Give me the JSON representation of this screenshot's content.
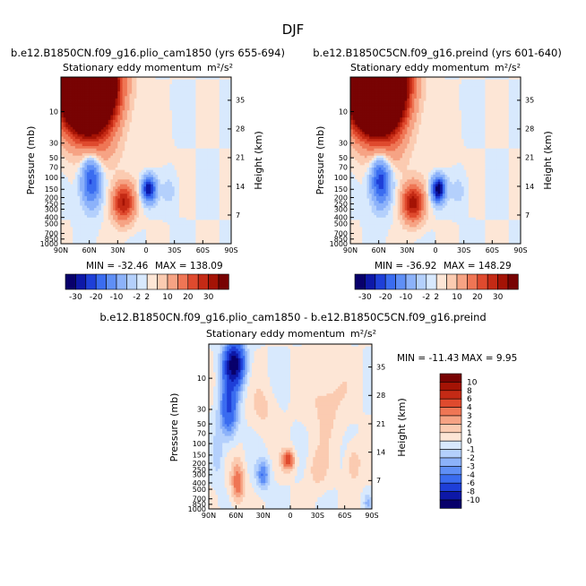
{
  "figure": {
    "title": "DJF"
  },
  "chart_data": [
    {
      "type": "heatmap",
      "title": "b.e12.B1850CN.f09_g16.plio_cam1850 (yrs 655-694)",
      "subtitle": "Stationary eddy momentum",
      "units": "m²/s²",
      "xlabel": "",
      "ylabel": "Pressure (mb)",
      "y2label": "Height (km)",
      "x_tick_labels": [
        "90N",
        "60N",
        "30N",
        "0",
        "30S",
        "60S",
        "90S"
      ],
      "y_tick_labels": [
        "10",
        "30",
        "50",
        "70",
        "100",
        "150",
        "200",
        "250",
        "300",
        "400",
        "500",
        "700",
        "850",
        "1000"
      ],
      "y_tick_values": [
        10,
        30,
        50,
        70,
        100,
        150,
        200,
        250,
        300,
        400,
        500,
        700,
        850,
        1000
      ],
      "y2_tick_labels": [
        "35",
        "28",
        "21",
        "14",
        "7"
      ],
      "y2_tick_values": [
        35,
        28,
        21,
        14,
        7
      ],
      "xlim": [
        90,
        -90
      ],
      "ylim": [
        1000,
        3
      ],
      "min_label": "MIN = -32.46",
      "max_label": "MAX = 138.09",
      "min": -32.46,
      "max": 138.09,
      "features": [
        {
          "lat": 62,
          "p": 4,
          "amp": 140,
          "sx": 18,
          "sy": 1.0
        },
        {
          "lat": 24,
          "p": 240,
          "amp": 26,
          "sx": 8,
          "sy": 0.45
        },
        {
          "lat": -3,
          "p": 150,
          "amp": -30,
          "sx": 5,
          "sy": 0.3
        },
        {
          "lat": 58,
          "p": 110,
          "amp": -22,
          "sx": 7,
          "sy": 0.6
        },
        {
          "lat": -25,
          "p": 160,
          "amp": -3,
          "sx": 6,
          "sy": 0.4
        },
        {
          "lat": 45,
          "p": 40,
          "amp": 4,
          "sx": 12,
          "sy": 0.6
        },
        {
          "lat": -5,
          "p": 40,
          "amp": 2,
          "sx": 10,
          "sy": 0.5
        }
      ]
    },
    {
      "type": "heatmap",
      "title": "b.e12.B1850C5CN.f09_g16.preind (yrs 601-640)",
      "subtitle": "Stationary eddy momentum",
      "units": "m²/s²",
      "xlabel": "",
      "ylabel": "Pressure (mb)",
      "y2label": "Height (km)",
      "x_tick_labels": [
        "90N",
        "60N",
        "30N",
        "0",
        "30S",
        "60S",
        "90S"
      ],
      "y_tick_labels": [
        "10",
        "30",
        "50",
        "70",
        "100",
        "150",
        "200",
        "250",
        "300",
        "400",
        "500",
        "700",
        "850",
        "1000"
      ],
      "y_tick_values": [
        10,
        30,
        50,
        70,
        100,
        150,
        200,
        250,
        300,
        400,
        500,
        700,
        850,
        1000
      ],
      "y2_tick_labels": [
        "35",
        "28",
        "21",
        "14",
        "7"
      ],
      "y2_tick_values": [
        35,
        28,
        21,
        14,
        7
      ],
      "xlim": [
        90,
        -90
      ],
      "ylim": [
        1000,
        3
      ],
      "min_label": "MIN = -36.92",
      "max_label": "MAX = 148.29",
      "min": -36.92,
      "max": 148.29,
      "features": [
        {
          "lat": 62,
          "p": 4,
          "amp": 150,
          "sx": 18,
          "sy": 1.0
        },
        {
          "lat": 24,
          "p": 240,
          "amp": 28,
          "sx": 8,
          "sy": 0.45
        },
        {
          "lat": -3,
          "p": 150,
          "amp": -34,
          "sx": 5,
          "sy": 0.3
        },
        {
          "lat": 58,
          "p": 110,
          "amp": -24,
          "sx": 7,
          "sy": 0.6
        },
        {
          "lat": -25,
          "p": 160,
          "amp": -3,
          "sx": 6,
          "sy": 0.4
        },
        {
          "lat": 45,
          "p": 40,
          "amp": 4,
          "sx": 12,
          "sy": 0.6
        },
        {
          "lat": -5,
          "p": 40,
          "amp": 2,
          "sx": 10,
          "sy": 0.5
        }
      ]
    },
    {
      "type": "heatmap",
      "title": "b.e12.B1850CN.f09_g16.plio_cam1850 - b.e12.B1850C5CN.f09_g16.preind",
      "subtitle": "Stationary eddy momentum",
      "units": "m²/s²",
      "xlabel": "",
      "ylabel": "Pressure (mb)",
      "y2label": "Height (km)",
      "x_tick_labels": [
        "90N",
        "60N",
        "30N",
        "0",
        "30S",
        "60S",
        "90S"
      ],
      "y_tick_labels": [
        "10",
        "30",
        "50",
        "70",
        "100",
        "150",
        "200",
        "250",
        "300",
        "400",
        "500",
        "700",
        "850",
        "1000"
      ],
      "y_tick_values": [
        10,
        30,
        50,
        70,
        100,
        150,
        200,
        250,
        300,
        400,
        500,
        700,
        850,
        1000
      ],
      "y2_tick_labels": [
        "35",
        "28",
        "21",
        "14",
        "7"
      ],
      "y2_tick_values": [
        35,
        28,
        21,
        14,
        7
      ],
      "xlim": [
        90,
        -90
      ],
      "ylim": [
        1000,
        3
      ],
      "min_label": "MIN = -11.43",
      "max_label": "MAX =    9.95",
      "min": -11.43,
      "max": 9.95,
      "features": [
        {
          "lat": 62,
          "p": 6,
          "amp": -11,
          "sx": 8,
          "sy": 0.55
        },
        {
          "lat": 68,
          "p": 30,
          "amp": -6,
          "sx": 7,
          "sy": 0.7
        },
        {
          "lat": 58,
          "p": 400,
          "amp": 4,
          "sx": 5,
          "sy": 0.5
        },
        {
          "lat": 30,
          "p": 300,
          "amp": -4,
          "sx": 5,
          "sy": 0.35
        },
        {
          "lat": 2,
          "p": 180,
          "amp": 5,
          "sx": 5,
          "sy": 0.25
        },
        {
          "lat": -30,
          "p": 250,
          "amp": 1.5,
          "sx": 8,
          "sy": 0.5
        },
        {
          "lat": -40,
          "p": 20,
          "amp": 1.5,
          "sx": 15,
          "sy": 1.0
        },
        {
          "lat": -70,
          "p": 200,
          "amp": 2,
          "sx": 6,
          "sy": 0.5
        },
        {
          "lat": -85,
          "p": 800,
          "amp": -2,
          "sx": 3,
          "sy": 0.2
        },
        {
          "lat": 30,
          "p": 30,
          "amp": 1.2,
          "sx": 10,
          "sy": 0.6
        },
        {
          "lat": 80,
          "p": 150,
          "amp": -1.5,
          "sx": 4,
          "sy": 0.6
        }
      ]
    }
  ],
  "colorbar_main": {
    "labels": [
      "-30",
      "-20",
      "-10",
      "-2",
      "2",
      "10",
      "20",
      "30"
    ],
    "levels": [
      -30,
      -25,
      -20,
      -15,
      -10,
      -5,
      -2,
      0,
      2,
      5,
      10,
      15,
      20,
      25,
      30
    ],
    "colors": [
      "#08006b",
      "#0d18a8",
      "#1e3fd8",
      "#3a6cf0",
      "#5f8ff6",
      "#8cb2fa",
      "#b4d0fc",
      "#d8e9fd",
      "#fde6d6",
      "#fbcbb1",
      "#f6a384",
      "#ef7655",
      "#df4a2e",
      "#c42a15",
      "#a41305",
      "#780303"
    ]
  },
  "colorbar_diff": {
    "labels": [
      "10",
      "8",
      "6",
      "4",
      "3",
      "2",
      "1",
      "0",
      "-1",
      "-2",
      "-3",
      "-4",
      "-6",
      "-8",
      "-10"
    ],
    "levels": [
      -10,
      -8,
      -6,
      -4,
      -3,
      -2,
      -1,
      0,
      1,
      2,
      3,
      4,
      6,
      8,
      10
    ],
    "colors": [
      "#08006b",
      "#0d18a8",
      "#1e3fd8",
      "#3a6cf0",
      "#5f8ff6",
      "#8cb2fa",
      "#b4d0fc",
      "#d8e9fd",
      "#fde6d6",
      "#fbcbb1",
      "#f6a384",
      "#ef7655",
      "#df4a2e",
      "#c42a15",
      "#a41305",
      "#780303"
    ]
  }
}
